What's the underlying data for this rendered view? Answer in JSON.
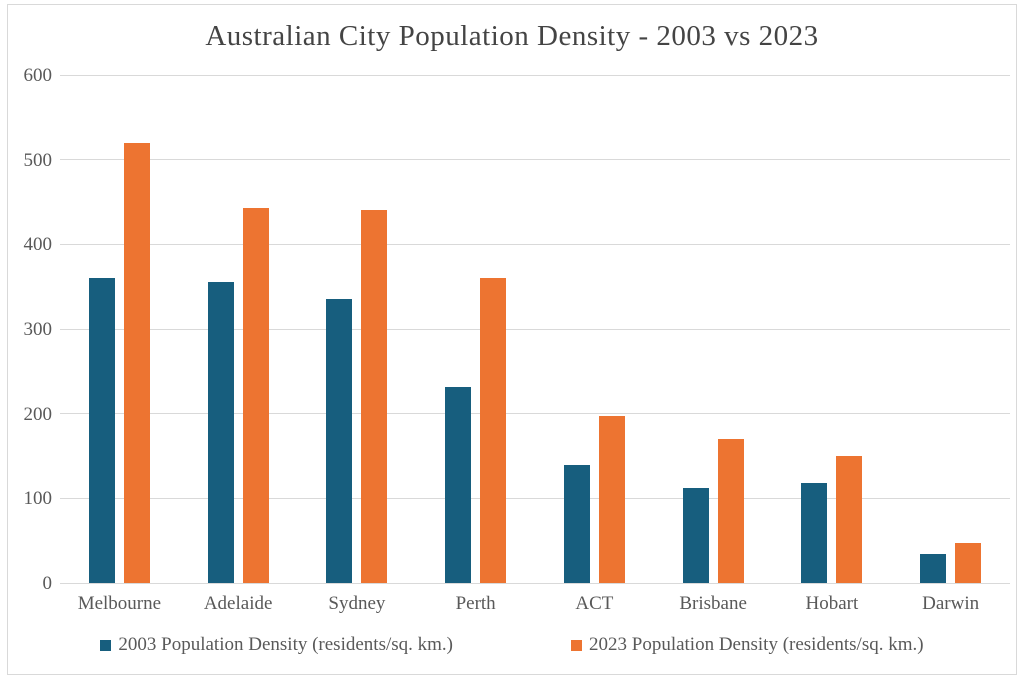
{
  "chart_data": {
    "type": "bar",
    "title": "Australian City Population Density - 2003 vs 2023",
    "categories": [
      "Melbourne",
      "Adelaide",
      "Sydney",
      "Perth",
      "ACT",
      "Brisbane",
      "Hobart",
      "Darwin"
    ],
    "series": [
      {
        "name": "2003 Population Density (residents/sq. km.)",
        "color": "#175e7e",
        "values": [
          360,
          356,
          335,
          232,
          139,
          112,
          118,
          34
        ]
      },
      {
        "name": "2023 Population Density (residents/sq. km.)",
        "color": "#ed7431",
        "values": [
          520,
          443,
          440,
          360,
          197,
          170,
          150,
          47
        ]
      }
    ],
    "xlabel": "",
    "ylabel": "",
    "ylim": [
      0,
      600
    ],
    "ytick_step": 100,
    "grid": true,
    "legend_position": "bottom",
    "colors": {
      "gridline": "#d9d9d9",
      "axis_text": "#595959",
      "title_text": "#444444",
      "background": "#ffffff"
    }
  }
}
